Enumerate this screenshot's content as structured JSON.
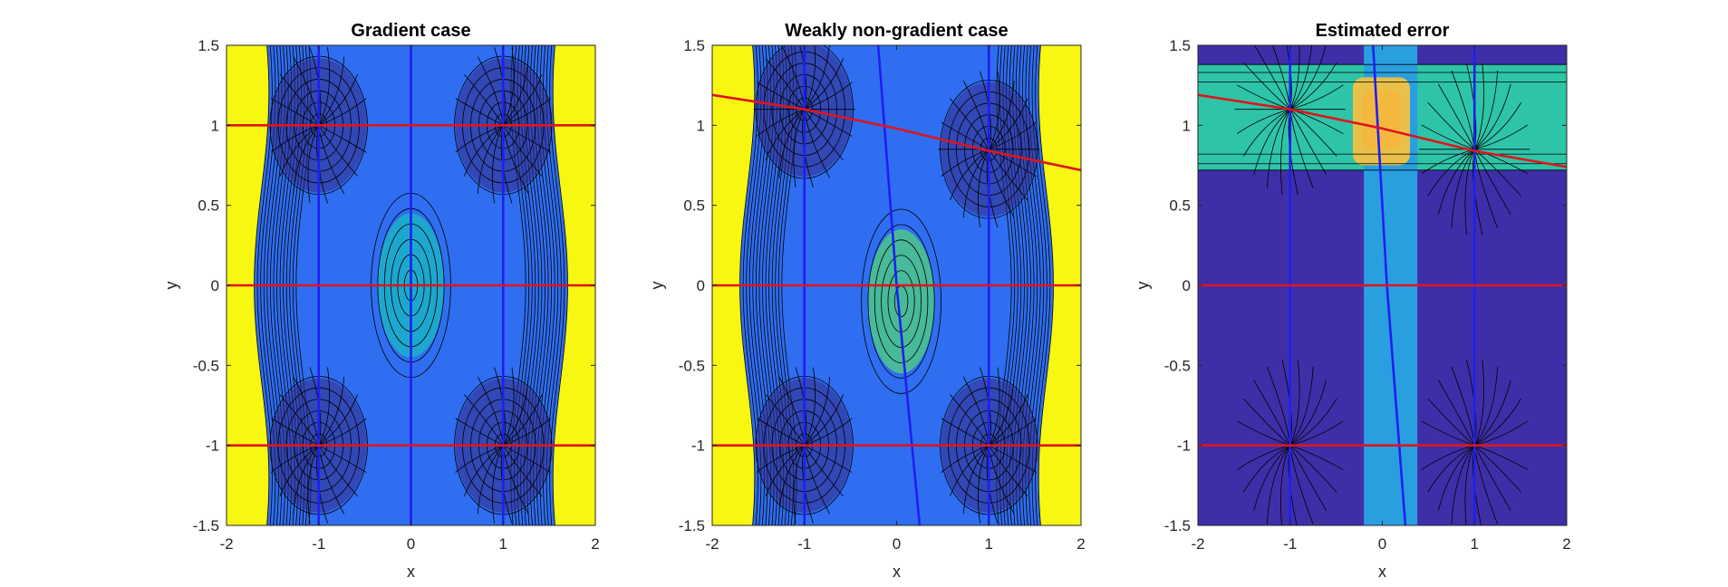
{
  "chart_data": [
    {
      "type": "contour",
      "title": "Gradient case",
      "xlabel": "x",
      "ylabel": "y",
      "xlim": [
        -2,
        2
      ],
      "ylim": [
        -1.5,
        1.5
      ],
      "xticks": [
        "-2",
        "-1",
        "0",
        "1",
        "2"
      ],
      "yticks": [
        "1.5",
        "1",
        "0.5",
        "0",
        "-0.5",
        "-1",
        "-1.5"
      ],
      "equilibria": [
        [
          -1,
          1
        ],
        [
          1,
          1
        ],
        [
          -1,
          -1
        ],
        [
          1,
          -1
        ]
      ],
      "red_lines": [
        {
          "x": [
            -2,
            2
          ],
          "y": [
            1,
            1
          ]
        },
        {
          "x": [
            -2,
            2
          ],
          "y": [
            0,
            0
          ]
        },
        {
          "x": [
            -2,
            2
          ],
          "y": [
            -1,
            -1
          ]
        }
      ],
      "blue_lines": [
        {
          "x": [
            -1,
            -1
          ],
          "y": [
            -1.5,
            1.5
          ]
        },
        {
          "x": [
            0,
            0
          ],
          "y": [
            -1.5,
            1.5
          ]
        },
        {
          "x": [
            1,
            1
          ],
          "y": [
            -1.5,
            1.5
          ]
        }
      ],
      "colors": {
        "background": "#f7f711",
        "deep": "#352a87",
        "mid": "#2f6ef0",
        "center": "#1ab2c8"
      }
    },
    {
      "type": "contour",
      "title": "Weakly non-gradient case",
      "xlabel": "x",
      "ylabel": "y",
      "xlim": [
        -2,
        2
      ],
      "ylim": [
        -1.5,
        1.5
      ],
      "xticks": [
        "-2",
        "-1",
        "0",
        "1",
        "2"
      ],
      "yticks": [
        "1.5",
        "1",
        "0.5",
        "0",
        "-0.5",
        "-1",
        "-1.5"
      ],
      "equilibria": [
        [
          -1,
          1.1
        ],
        [
          1,
          0.85
        ],
        [
          -1,
          -1
        ],
        [
          1,
          -1
        ]
      ],
      "red_lines": [
        {
          "x": [
            -2,
            -1,
            0,
            1,
            2
          ],
          "y": [
            1.19,
            1.1,
            0.98,
            0.84,
            0.72
          ]
        },
        {
          "x": [
            -2,
            2
          ],
          "y": [
            0,
            0
          ]
        },
        {
          "x": [
            -2,
            2
          ],
          "y": [
            -1,
            -1
          ]
        }
      ],
      "blue_lines": [
        {
          "x": [
            -1,
            -1
          ],
          "y": [
            -1.5,
            1.5
          ]
        },
        {
          "x": [
            -0.2,
            0,
            0.25
          ],
          "y": [
            1.5,
            0,
            -1.5
          ]
        },
        {
          "x": [
            1,
            1
          ],
          "y": [
            -1.5,
            1.5
          ]
        }
      ],
      "colors": {
        "background": "#f7f711",
        "deep": "#352a87",
        "mid": "#2f6ef0",
        "center": "#4cc78a"
      }
    },
    {
      "type": "contour",
      "title": "Estimated error",
      "xlabel": "x",
      "ylabel": "y",
      "xlim": [
        -2,
        2
      ],
      "ylim": [
        -1.5,
        1.5
      ],
      "xticks": [
        "-2",
        "-1",
        "0",
        "1",
        "2"
      ],
      "yticks": [
        "1.5",
        "1",
        "0.5",
        "0",
        "-0.5",
        "-1",
        "-1.5"
      ],
      "equilibria": [
        [
          -1,
          1.1
        ],
        [
          1,
          0.85
        ],
        [
          -1,
          -1
        ],
        [
          1,
          -1
        ]
      ],
      "red_lines": [
        {
          "x": [
            -2,
            -1,
            0,
            1,
            2
          ],
          "y": [
            1.19,
            1.1,
            0.98,
            0.84,
            0.74
          ]
        },
        {
          "x": [
            -2,
            2
          ],
          "y": [
            0,
            0
          ]
        },
        {
          "x": [
            -2,
            2
          ],
          "y": [
            -1,
            -1
          ]
        }
      ],
      "blue_lines": [
        {
          "x": [
            -1,
            -1
          ],
          "y": [
            -1.5,
            1.5
          ]
        },
        {
          "x": [
            -0.1,
            0.05,
            0.25
          ],
          "y": [
            1.5,
            0,
            -1.5
          ]
        },
        {
          "x": [
            1,
            1
          ],
          "y": [
            -1.5,
            1.5
          ]
        }
      ],
      "colors": {
        "background": "#3e2fa8",
        "band": "#2ec4a8",
        "strip": "#2a9fe0",
        "peak": "#f4b83e"
      }
    }
  ]
}
